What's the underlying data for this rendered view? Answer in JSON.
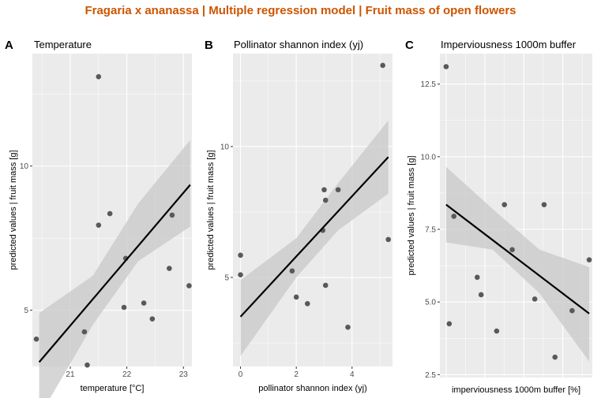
{
  "figure_title": "Fragaria x ananassa | Multiple regression model | Fruit mass of open flowers",
  "style": {
    "title_color": "#cc5500",
    "panel_bg": "#ebebeb",
    "grid_color": "#ffffff",
    "point_color": "#595959",
    "line_color": "#000000",
    "band_color": "#c8c8c8"
  },
  "chart_data": [
    {
      "tag": "A",
      "type": "scatter",
      "title": "Temperature",
      "xlabel": "temperature [°C]",
      "ylabel": "predicted values | fruit mass [g]",
      "xlim": [
        20.33,
        23.15
      ],
      "ylim": [
        3.05,
        13.9
      ],
      "xticks": [
        21,
        22,
        23
      ],
      "yticks": [
        5,
        10
      ],
      "points": [
        {
          "x": 20.4,
          "y": 4.0
        },
        {
          "x": 21.25,
          "y": 4.25
        },
        {
          "x": 21.3,
          "y": 3.1
        },
        {
          "x": 21.5,
          "y": 13.1
        },
        {
          "x": 21.5,
          "y": 7.95
        },
        {
          "x": 21.7,
          "y": 8.35
        },
        {
          "x": 21.95,
          "y": 5.1
        },
        {
          "x": 21.98,
          "y": 6.8
        },
        {
          "x": 22.3,
          "y": 5.25
        },
        {
          "x": 22.45,
          "y": 4.7
        },
        {
          "x": 22.75,
          "y": 6.45
        },
        {
          "x": 22.8,
          "y": 8.3
        },
        {
          "x": 23.1,
          "y": 5.85
        }
      ],
      "fit": [
        {
          "x": 20.45,
          "y": 3.2
        },
        {
          "x": 23.12,
          "y": 9.35
        }
      ],
      "band": [
        {
          "x": 20.45,
          "lo": 1.3,
          "hi": 4.9
        },
        {
          "x": 21.4,
          "lo": 4.5,
          "hi": 6.2
        },
        {
          "x": 22.2,
          "lo": 6.7,
          "hi": 8.7
        },
        {
          "x": 23.12,
          "lo": 7.9,
          "hi": 10.9
        }
      ]
    },
    {
      "tag": "B",
      "type": "scatter",
      "title": "Pollinator shannon index (yj)",
      "xlabel": "pollinator shannon index (yj)",
      "ylabel": "predicted values | fruit mass [g]",
      "xlim": [
        -0.27,
        5.45
      ],
      "ylim": [
        1.6,
        13.55
      ],
      "xticks": [
        0,
        2,
        4
      ],
      "yticks": [
        5,
        10
      ],
      "points": [
        {
          "x": 0.0,
          "y": 5.85
        },
        {
          "x": 0.0,
          "y": 5.1
        },
        {
          "x": 1.85,
          "y": 5.25
        },
        {
          "x": 2.0,
          "y": 4.25
        },
        {
          "x": 2.4,
          "y": 4.0
        },
        {
          "x": 2.95,
          "y": 6.8
        },
        {
          "x": 3.0,
          "y": 8.35
        },
        {
          "x": 3.05,
          "y": 7.95
        },
        {
          "x": 3.05,
          "y": 4.7
        },
        {
          "x": 3.5,
          "y": 8.35
        },
        {
          "x": 3.85,
          "y": 3.1
        },
        {
          "x": 5.1,
          "y": 13.1
        },
        {
          "x": 5.3,
          "y": 6.45
        }
      ],
      "fit": [
        {
          "x": 0.0,
          "y": 3.5
        },
        {
          "x": 5.3,
          "y": 9.6
        }
      ],
      "band": [
        {
          "x": 0.0,
          "lo": 2.0,
          "hi": 4.9
        },
        {
          "x": 2.0,
          "lo": 5.0,
          "hi": 6.5
        },
        {
          "x": 3.5,
          "lo": 6.8,
          "hi": 8.6
        },
        {
          "x": 5.3,
          "lo": 8.2,
          "hi": 11.0
        }
      ]
    },
    {
      "tag": "C",
      "type": "scatter",
      "title": "Imperviousness 1000m buffer",
      "xlabel": "imperviousness 1000m buffer [%]",
      "ylabel": "predicted values | fruit mass [g]",
      "xlim": [
        -0.4,
        9.4
      ],
      "ylim": [
        2.4,
        13.55
      ],
      "xticks": [],
      "yticks": [
        2.5,
        5.0,
        7.5,
        10.0,
        12.5
      ],
      "points": [
        {
          "x": 0.0,
          "y": 13.1
        },
        {
          "x": 0.2,
          "y": 4.25
        },
        {
          "x": 0.5,
          "y": 7.95
        },
        {
          "x": 2.0,
          "y": 5.85
        },
        {
          "x": 2.25,
          "y": 5.25
        },
        {
          "x": 3.25,
          "y": 4.0
        },
        {
          "x": 3.75,
          "y": 8.35
        },
        {
          "x": 4.25,
          "y": 6.8
        },
        {
          "x": 5.7,
          "y": 5.1
        },
        {
          "x": 6.3,
          "y": 8.35
        },
        {
          "x": 7.0,
          "y": 3.1
        },
        {
          "x": 8.1,
          "y": 4.7
        },
        {
          "x": 9.2,
          "y": 6.45
        }
      ],
      "fit": [
        {
          "x": 0.0,
          "y": 8.35
        },
        {
          "x": 9.2,
          "y": 4.6
        }
      ],
      "band": [
        {
          "x": 0.0,
          "lo": 7.05,
          "hi": 9.65
        },
        {
          "x": 3.0,
          "lo": 6.8,
          "hi": 8.2
        },
        {
          "x": 6.0,
          "lo": 5.3,
          "hi": 6.8
        },
        {
          "x": 9.2,
          "lo": 2.95,
          "hi": 6.2
        }
      ]
    }
  ]
}
